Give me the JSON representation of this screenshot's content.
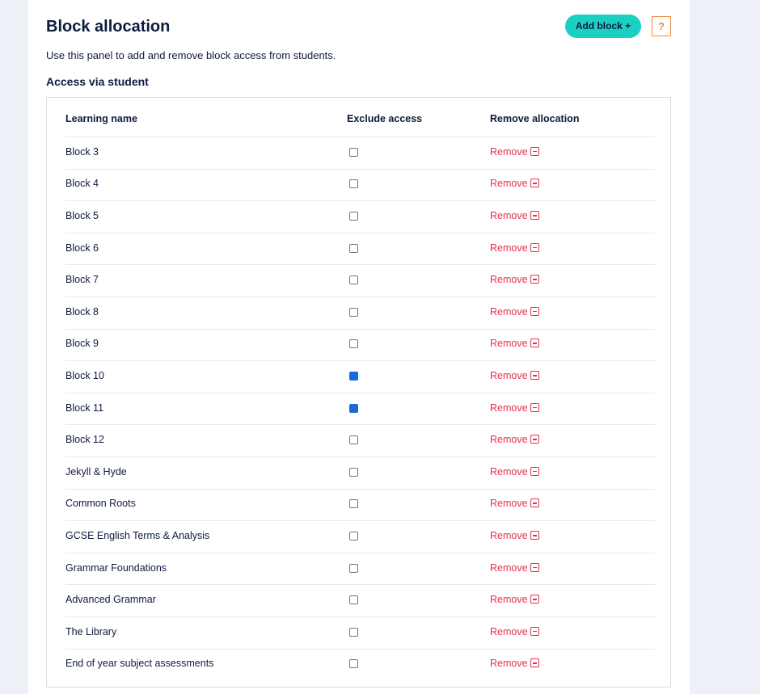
{
  "header": {
    "title": "Block allocation",
    "add_button": "Add block",
    "help": "?"
  },
  "description": "Use this panel to add and remove block access from students.",
  "section_title": "Access via student",
  "table": {
    "columns": [
      "Learning name",
      "Exclude access",
      "Remove allocation"
    ],
    "rows": [
      {
        "name": "Block 3",
        "excluded": false,
        "action": "Remove"
      },
      {
        "name": "Block 4",
        "excluded": false,
        "action": "Remove"
      },
      {
        "name": "Block 5",
        "excluded": false,
        "action": "Remove"
      },
      {
        "name": "Block 6",
        "excluded": false,
        "action": "Remove"
      },
      {
        "name": "Block 7",
        "excluded": false,
        "action": "Remove"
      },
      {
        "name": "Block 8",
        "excluded": false,
        "action": "Remove"
      },
      {
        "name": "Block 9",
        "excluded": false,
        "action": "Remove"
      },
      {
        "name": "Block 10",
        "excluded": true,
        "action": "Remove"
      },
      {
        "name": "Block 11",
        "excluded": true,
        "action": "Remove"
      },
      {
        "name": "Block 12",
        "excluded": false,
        "action": "Remove"
      },
      {
        "name": "Jekyll & Hyde",
        "excluded": false,
        "action": "Remove"
      },
      {
        "name": "Common Roots",
        "excluded": false,
        "action": "Remove"
      },
      {
        "name": "GCSE English Terms & Analysis",
        "excluded": false,
        "action": "Remove"
      },
      {
        "name": "Grammar Foundations",
        "excluded": false,
        "action": "Remove"
      },
      {
        "name": "Advanced Grammar",
        "excluded": false,
        "action": "Remove"
      },
      {
        "name": "The Library",
        "excluded": false,
        "action": "Remove"
      },
      {
        "name": "End of year subject assessments",
        "excluded": false,
        "action": "Remove"
      }
    ]
  }
}
